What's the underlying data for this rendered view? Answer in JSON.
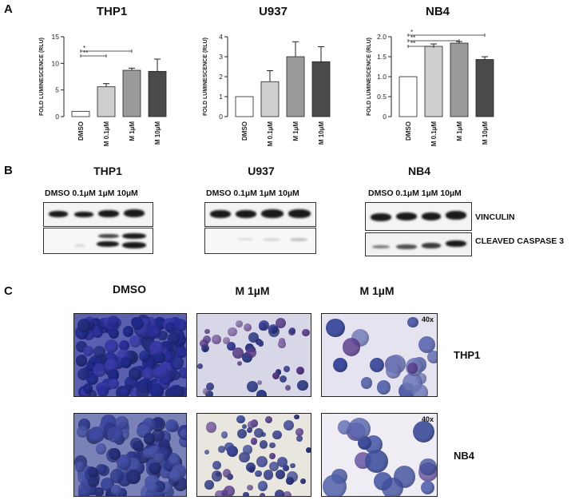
{
  "panels": {
    "a": "A",
    "b": "B",
    "c": "C"
  },
  "charts": [
    {
      "title": "THP1",
      "sig": [
        "**",
        "*"
      ]
    },
    {
      "title": "U937",
      "sig": []
    },
    {
      "title": "NB4",
      "sig": [
        "*",
        "**",
        "**"
      ]
    }
  ],
  "chart_data": [
    {
      "type": "bar",
      "title": "THP1",
      "ylabel": "FOLD LUMINESCENCE (RLU)",
      "categories": [
        "DMSO",
        "M 0.1µM",
        "M 1µM",
        "M 10µM"
      ],
      "values": [
        1.0,
        5.6,
        8.7,
        8.5
      ],
      "errors": [
        0.0,
        0.6,
        0.4,
        2.3
      ],
      "ylim": [
        0,
        15
      ],
      "yticks": [
        "0",
        "5",
        "10",
        "15"
      ],
      "bar_colors": [
        "#ffffff",
        "#cfcfcf",
        "#9a9a9a",
        "#4a4a4a"
      ]
    },
    {
      "type": "bar",
      "title": "U937",
      "ylabel": "FOLD LUMINESCENCE (RLU)",
      "categories": [
        "DMSO",
        "M 0.1µM",
        "M 1µM",
        "M 10µM"
      ],
      "values": [
        1.0,
        1.75,
        3.0,
        2.75
      ],
      "errors": [
        0.0,
        0.55,
        0.75,
        0.75
      ],
      "ylim": [
        0,
        4
      ],
      "yticks": [
        "0",
        "1",
        "2",
        "3",
        "4"
      ],
      "bar_colors": [
        "#ffffff",
        "#cfcfcf",
        "#9a9a9a",
        "#4a4a4a"
      ]
    },
    {
      "type": "bar",
      "title": "NB4",
      "ylabel": "FOLD LUMINESCENCE (RLU)",
      "categories": [
        "DMSO",
        "M 0.1µM",
        "M 1µM",
        "M 10µM"
      ],
      "values": [
        1.0,
        1.76,
        1.84,
        1.43
      ],
      "errors": [
        0.0,
        0.06,
        0.04,
        0.07
      ],
      "ylim": [
        0,
        2.0
      ],
      "yticks": [
        "0",
        "0.5",
        "1.0",
        "1.5",
        "2.0"
      ],
      "bar_colors": [
        "#ffffff",
        "#cfcfcf",
        "#9a9a9a",
        "#4a4a4a"
      ]
    }
  ],
  "blots": [
    {
      "title": "THP1",
      "lanes": [
        "DMSO",
        "0.1µM",
        "1µM",
        "10µM"
      ]
    },
    {
      "title": "U937",
      "lanes": [
        "DMSO",
        "0.1µM",
        "1µM",
        "10µM"
      ]
    },
    {
      "title": "NB4",
      "lanes": [
        "DMSO",
        "0.1µM",
        "1µM",
        "10µM"
      ]
    }
  ],
  "blot_labels": {
    "top": "VINCULIN",
    "bottom": "CLEAVED CASPASE 3"
  },
  "micro": {
    "columns": [
      "DMSO",
      "M 1µM",
      "M 1µM"
    ],
    "rows": [
      "THP1",
      "NB4"
    ],
    "magnification": "40x"
  }
}
